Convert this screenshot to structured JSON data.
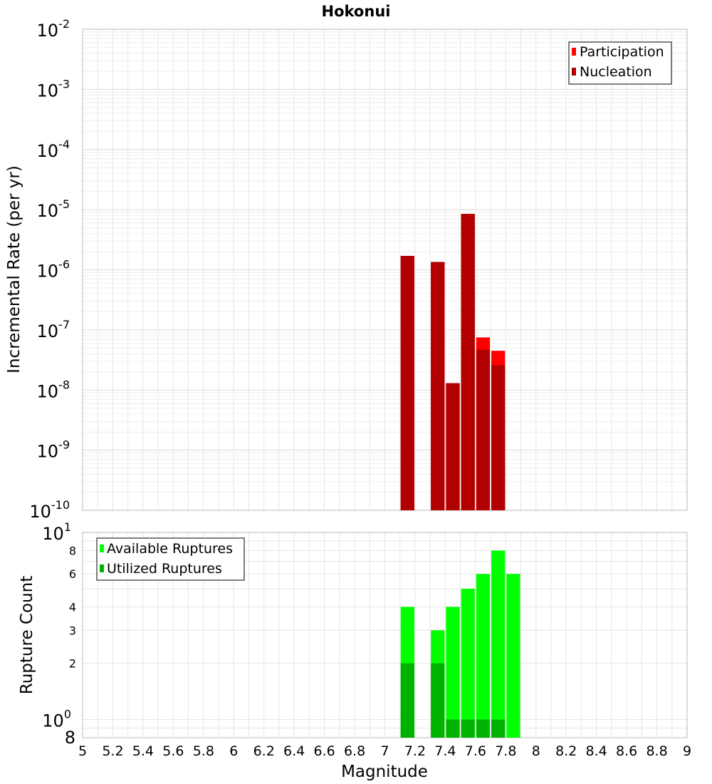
{
  "title": "Hokonui",
  "xlabel": "Magnitude",
  "chart_data": [
    {
      "type": "bar",
      "title": "Hokonui",
      "xlabel": "Magnitude",
      "ylabel": "Incremental Rate (per yr)",
      "yscale": "log",
      "xlim": [
        5,
        9
      ],
      "ylim": [
        1e-10,
        0.01
      ],
      "bar_width": 0.1,
      "grid": true,
      "legend_placement": "top-right",
      "x_ticks": [
        "5",
        "5.2",
        "5.4",
        "5.6",
        "5.8",
        "6",
        "6.2",
        "6.4",
        "6.6",
        "6.8",
        "7",
        "7.2",
        "7.4",
        "7.6",
        "7.8",
        "8",
        "8.2",
        "8.4",
        "8.6",
        "8.8",
        "9"
      ],
      "y_ticks": [
        {
          "base": "10",
          "exp": "-2"
        },
        {
          "base": "10",
          "exp": "-3"
        },
        {
          "base": "10",
          "exp": "-4"
        },
        {
          "base": "10",
          "exp": "-5"
        },
        {
          "base": "10",
          "exp": "-6"
        },
        {
          "base": "10",
          "exp": "-7"
        },
        {
          "base": "10",
          "exp": "-8"
        },
        {
          "base": "10",
          "exp": "-9"
        },
        {
          "base": "10",
          "exp": "-10"
        }
      ],
      "series": [
        {
          "name": "Participation",
          "color": "#ff0000",
          "x": [
            7.15,
            7.35,
            7.45,
            7.55,
            7.65,
            7.75
          ],
          "values": [
            1.7e-06,
            1.35e-06,
            1.3e-08,
            8.5e-06,
            7.5e-08,
            4.5e-08
          ]
        },
        {
          "name": "Nucleation",
          "color": "#b20000",
          "x": [
            7.15,
            7.35,
            7.45,
            7.55,
            7.65,
            7.75
          ],
          "values": [
            1.7e-06,
            1.35e-06,
            1.3e-08,
            8.5e-06,
            4.7e-08,
            2.6e-08
          ]
        }
      ]
    },
    {
      "type": "bar",
      "xlabel": "Magnitude",
      "ylabel": "Rupture Count",
      "yscale": "log",
      "xlim": [
        5,
        9
      ],
      "ylim": [
        0.8,
        10
      ],
      "bar_width": 0.1,
      "grid": true,
      "legend_placement": "top-left",
      "y_ticks": [
        {
          "value": 10,
          "base": "10",
          "exp": "1"
        },
        {
          "value": 8,
          "label": "8"
        },
        {
          "value": 6,
          "label": "6"
        },
        {
          "value": 4,
          "label": "4"
        },
        {
          "value": 3,
          "label": "3"
        },
        {
          "value": 2,
          "label": "2"
        },
        {
          "value": 1,
          "base": "10",
          "exp": "0"
        },
        {
          "value": 0.8,
          "label": "8"
        }
      ],
      "series": [
        {
          "name": "Available Ruptures",
          "color": "#00ff00",
          "x": [
            7.15,
            7.35,
            7.45,
            7.55,
            7.65,
            7.75,
            7.85
          ],
          "values": [
            4,
            3,
            4,
            5,
            6,
            8,
            6
          ]
        },
        {
          "name": "Utilized Ruptures",
          "color": "#00b200",
          "x": [
            7.15,
            7.35,
            7.45,
            7.55,
            7.65,
            7.75
          ],
          "values": [
            2,
            2,
            1,
            1,
            1,
            1
          ]
        }
      ]
    }
  ]
}
